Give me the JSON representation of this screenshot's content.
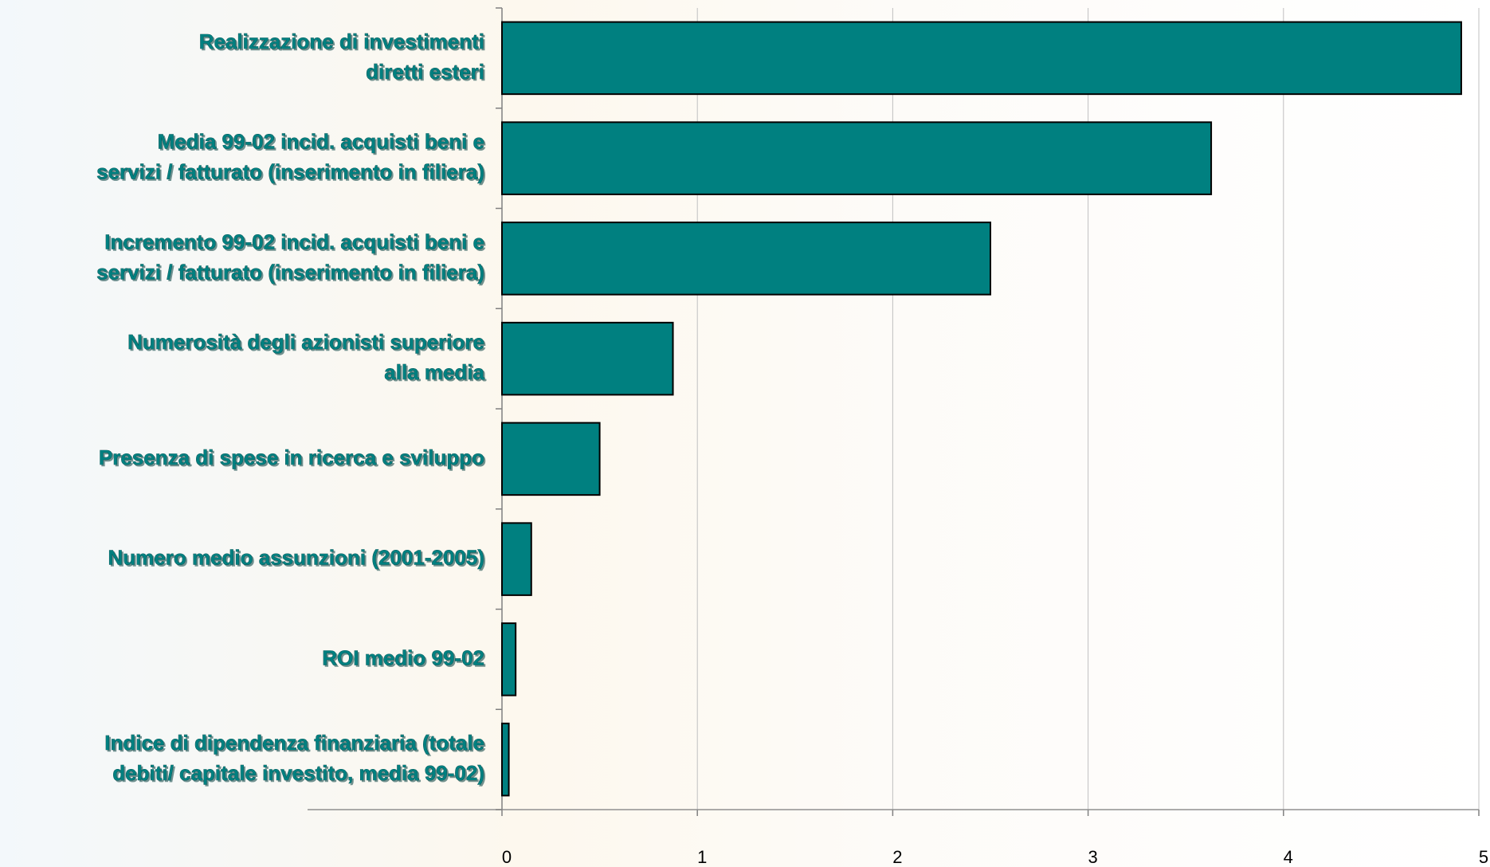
{
  "chart_data": {
    "type": "bar",
    "orientation": "horizontal",
    "categories": [
      [
        "Realizzazione di investimenti",
        "diretti esteri"
      ],
      [
        "Media 99-02 incid. acquisti beni e",
        "servizi / fatturato (inserimento in filiera)"
      ],
      [
        "Incremento 99-02 incid. acquisti beni e",
        "servizi / fatturato (inserimento in filiera)"
      ],
      [
        "Numerosità degli azionisti superiore",
        "alla media"
      ],
      [
        "Presenza di spese in ricerca e sviluppo"
      ],
      [
        "Numero medio assunzioni (2001-2005)"
      ],
      [
        "ROI medio 99-02"
      ],
      [
        "Indice di dipendenza finanziaria (totale",
        "debiti/ capitale investito, media 99-02)"
      ]
    ],
    "values": [
      4.91,
      3.63,
      2.5,
      0.875,
      0.5,
      0.15,
      0.07,
      0.035
    ],
    "color": "#008080",
    "xlim": [
      0,
      5
    ],
    "xticks": [
      0,
      1,
      2,
      3,
      4,
      5
    ],
    "grid": true
  }
}
